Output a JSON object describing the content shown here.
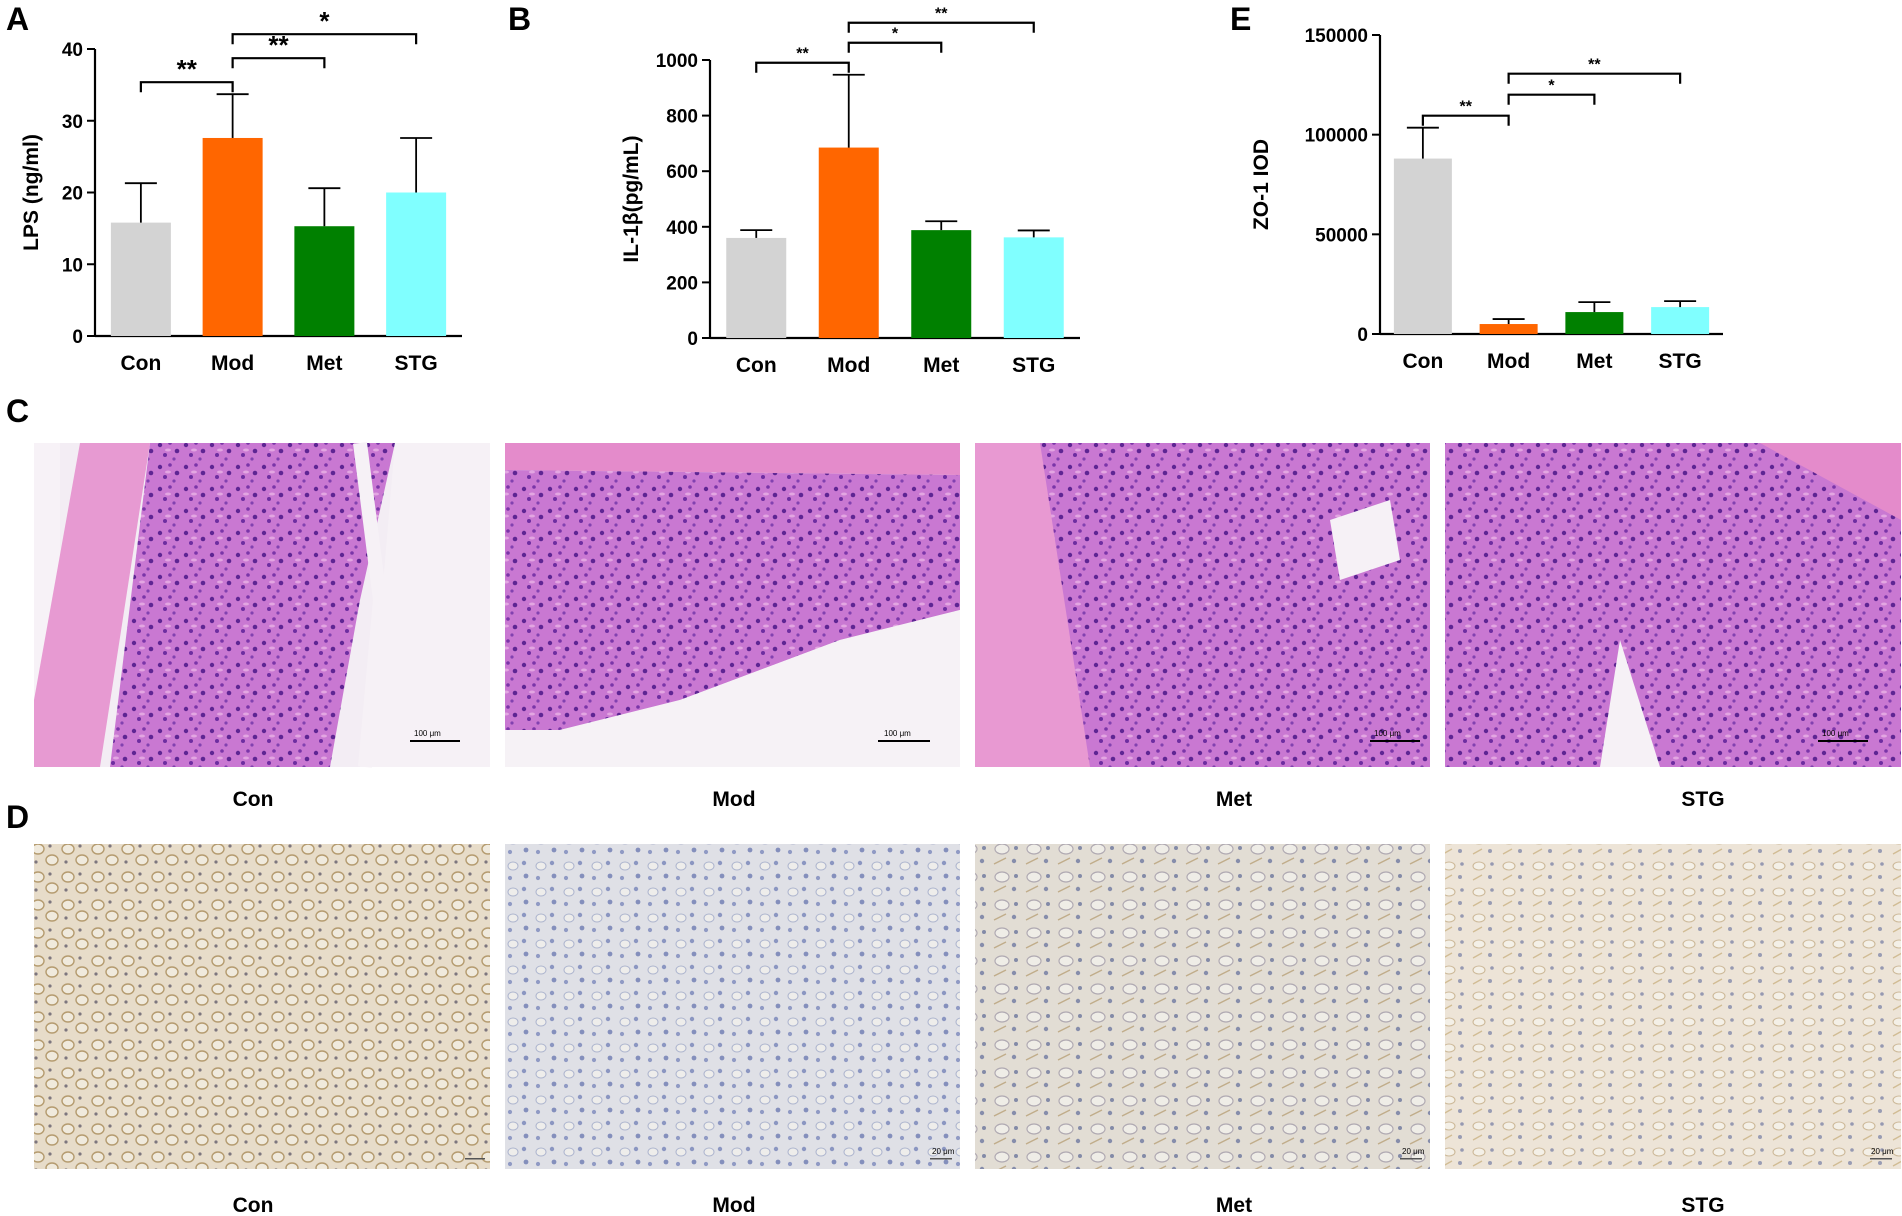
{
  "panel_letters": {
    "a": "A",
    "b": "B",
    "c": "C",
    "d": "D",
    "e": "E"
  },
  "chart_data": [
    {
      "type": "bar",
      "panel": "A",
      "categories": [
        "Con",
        "Mod",
        "Met",
        "STG"
      ],
      "values": [
        15.8,
        27.6,
        15.3,
        20.0
      ],
      "errors": [
        5.5,
        6.1,
        5.3,
        7.6
      ],
      "colors": [
        "#d3d3d3",
        "#ff6600",
        "#008000",
        "#80ffff"
      ],
      "ylabel": "LPS (ng/ml)",
      "ylim": [
        0,
        40
      ],
      "yticks": [
        0,
        10,
        20,
        30,
        40
      ],
      "significance": [
        {
          "from": 0,
          "to": 1,
          "label": "**"
        },
        {
          "from": 1,
          "to": 2,
          "label": "**"
        },
        {
          "from": 1,
          "to": 3,
          "label": "*"
        }
      ]
    },
    {
      "type": "bar",
      "panel": "B",
      "categories": [
        "Con",
        "Mod",
        "Met",
        "STG"
      ],
      "values": [
        360,
        685,
        388,
        362
      ],
      "errors": [
        28,
        262,
        32,
        25
      ],
      "colors": [
        "#d3d3d3",
        "#ff6600",
        "#008000",
        "#80ffff"
      ],
      "ylabel": "IL-1β(pg/mL)",
      "ylim": [
        0,
        1000
      ],
      "yticks": [
        0,
        200,
        400,
        600,
        800,
        1000
      ],
      "significance": [
        {
          "from": 0,
          "to": 1,
          "label": "**"
        },
        {
          "from": 1,
          "to": 2,
          "label": "*"
        },
        {
          "from": 1,
          "to": 3,
          "label": "**"
        }
      ]
    },
    {
      "type": "bar",
      "panel": "E",
      "categories": [
        "Con",
        "Mod",
        "Met",
        "STG"
      ],
      "values": [
        88000,
        5000,
        11000,
        13500
      ],
      "errors": [
        15500,
        2500,
        5000,
        3000
      ],
      "colors": [
        "#d3d3d3",
        "#ff6600",
        "#008000",
        "#80ffff"
      ],
      "ylabel": "ZO-1 IOD",
      "ylim": [
        0,
        150000
      ],
      "yticks": [
        0,
        50000,
        100000,
        150000
      ],
      "significance": [
        {
          "from": 0,
          "to": 1,
          "label": "**"
        },
        {
          "from": 1,
          "to": 2,
          "label": "*"
        },
        {
          "from": 1,
          "to": 3,
          "label": "**"
        }
      ]
    }
  ],
  "he_images": {
    "labels": [
      "Con",
      "Mod",
      "Met",
      "STG"
    ],
    "scale_text": "100 μm",
    "colors": {
      "background": "#f1eaf3",
      "tissue": "#c46ad0",
      "nuclei": "#6a2a9e",
      "muscle": "#e58fcd"
    }
  },
  "ihc_images": {
    "labels": [
      "Con",
      "Mod",
      "Met",
      "STG"
    ],
    "scale_text": "20 μm",
    "colors": {
      "background": "#f3efe6",
      "con_tint": "#c9b48c",
      "mod_tint": "#a9b2cf",
      "met_tint": "#c7c0b6",
      "stg_tint": "#d9cbb0",
      "nuclei": "#6f7fae"
    }
  }
}
